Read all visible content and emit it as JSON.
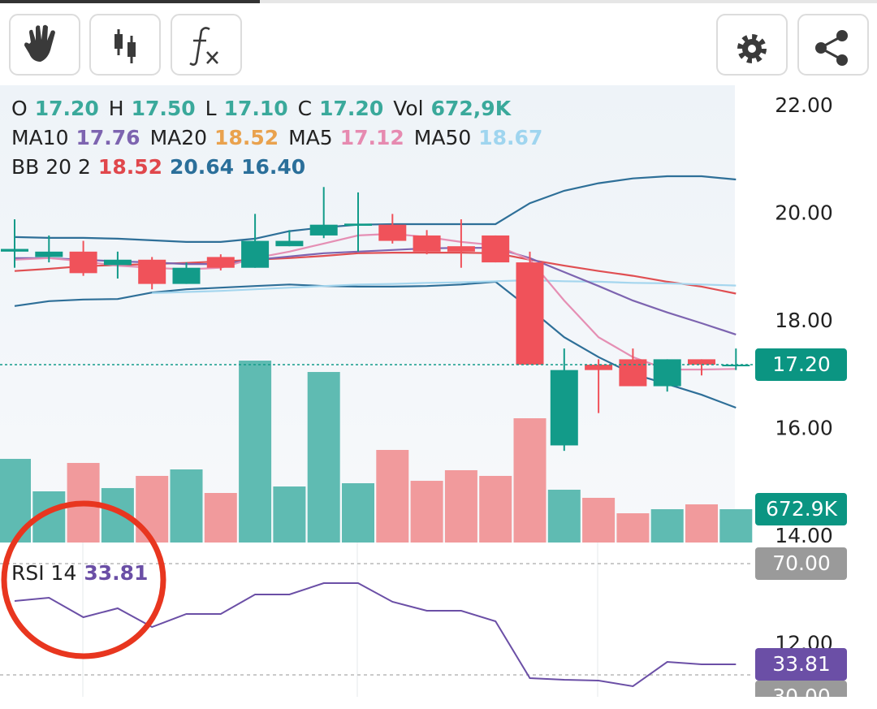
{
  "chart_data": {
    "type": "candlestick",
    "open": [
      19.3,
      19.2,
      19.3,
      19.05,
      19.15,
      18.7,
      19.2,
      19.0,
      19.4,
      19.6,
      19.78,
      19.8,
      19.6,
      19.4,
      19.6,
      19.1,
      15.7,
      17.2,
      17.3,
      16.8,
      17.3,
      17.2
    ],
    "high": [
      19.9,
      19.6,
      19.5,
      19.3,
      19.2,
      19.1,
      19.25,
      20.0,
      19.7,
      20.5,
      20.4,
      20.0,
      19.7,
      19.9,
      19.6,
      19.3,
      17.5,
      17.3,
      17.5,
      17.3,
      17.3,
      17.5
    ],
    "low": [
      19.0,
      19.1,
      18.85,
      18.8,
      18.6,
      18.7,
      18.95,
      19.0,
      19.4,
      19.55,
      19.3,
      19.45,
      19.25,
      19.0,
      19.1,
      17.2,
      15.6,
      16.3,
      16.8,
      16.7,
      17.0,
      17.1
    ],
    "close": [
      19.35,
      19.3,
      18.9,
      19.15,
      18.7,
      19.0,
      19.0,
      19.5,
      19.5,
      19.8,
      19.82,
      19.5,
      19.3,
      19.3,
      19.1,
      17.2,
      17.1,
      17.1,
      16.8,
      17.3,
      17.2,
      17.2
    ],
    "up_color": "#129b89",
    "down_color": "#f0525a",
    "ylim": [
      11.03,
      22.39
    ],
    "yticks": [
      {
        "value": 22,
        "label": "22.00"
      },
      {
        "value": 20,
        "label": "20.00"
      },
      {
        "value": 18,
        "label": "18.00"
      },
      {
        "value": 16,
        "label": "16.00"
      },
      {
        "value": 14,
        "label": "14.00"
      },
      {
        "value": 12,
        "label": "12.00"
      }
    ],
    "last_price": {
      "value": 17.2,
      "label": "17.20"
    },
    "overlays": [
      {
        "color": "#2e6f98",
        "values": [
          19.57,
          19.555,
          19.555,
          19.54,
          19.51,
          19.48,
          19.48,
          19.54,
          19.68,
          19.75,
          19.8,
          19.81,
          19.81,
          19.81,
          19.81,
          20.2,
          20.43,
          20.57,
          20.66,
          20.7,
          20.7,
          20.64
        ]
      },
      {
        "color": "#e04f52",
        "values": [
          18.94,
          18.98,
          19.03,
          19.05,
          19.07,
          19.09,
          19.12,
          19.15,
          19.18,
          19.22,
          19.27,
          19.28,
          19.28,
          19.28,
          19.27,
          19.15,
          19.04,
          18.94,
          18.85,
          18.74,
          18.65,
          18.52
        ]
      },
      {
        "color": "#2e6f98",
        "values": [
          18.29,
          18.38,
          18.41,
          18.42,
          18.54,
          18.6,
          18.63,
          18.66,
          18.69,
          18.66,
          18.65,
          18.65,
          18.66,
          18.69,
          18.74,
          18.24,
          17.71,
          17.34,
          17.03,
          16.84,
          16.64,
          16.4
        ]
      },
      {
        "color": "#a5d6ee",
        "values": [
          null,
          null,
          null,
          null,
          18.53,
          18.55,
          18.57,
          18.6,
          18.63,
          18.66,
          18.69,
          18.7,
          18.72,
          18.73,
          18.75,
          18.77,
          18.75,
          18.74,
          18.72,
          18.71,
          18.69,
          18.67
        ]
      },
      {
        "color": "#7d64b0",
        "values": [
          19.18,
          19.18,
          19.15,
          19.12,
          19.1,
          19.07,
          19.07,
          19.15,
          19.21,
          19.27,
          19.3,
          19.33,
          19.36,
          19.37,
          19.37,
          19.18,
          18.92,
          18.66,
          18.39,
          18.17,
          17.97,
          17.76
        ]
      },
      {
        "color": "#e58fb4",
        "values": [
          19.15,
          19.18,
          19.12,
          19.04,
          19.0,
          18.97,
          19.0,
          19.18,
          19.3,
          19.45,
          19.6,
          19.63,
          19.57,
          19.48,
          19.42,
          19.15,
          18.39,
          17.71,
          17.34,
          17.11,
          17.11,
          17.12
        ]
      }
    ],
    "legend": [
      [
        {
          "label": "O",
          "value": "17.20",
          "color": "#3aa99b"
        },
        {
          "label": "H",
          "value": "17.50",
          "color": "#3aa99b"
        },
        {
          "label": "L",
          "value": "17.10",
          "color": "#3aa99b"
        },
        {
          "label": "C",
          "value": "17.20",
          "color": "#3aa99b"
        },
        {
          "label": "Vol",
          "value": "672,9K",
          "color": "#3aa99b"
        }
      ],
      [
        {
          "label": "MA10",
          "value": "17.76",
          "color": "#7d64b0"
        },
        {
          "label": "MA20",
          "value": "18.52",
          "color": "#e9a24e"
        },
        {
          "label": "MA5",
          "value": "17.12",
          "color": "#e68ab0"
        },
        {
          "label": "MA50",
          "value": "18.67",
          "color": "#9fd5ef"
        }
      ],
      [
        {
          "label": "BB 20 2",
          "values": [
            "18.52",
            "20.64",
            "16.40"
          ],
          "colors": [
            "#e0474c",
            "#2b6f9a",
            "#2b6f9a"
          ]
        }
      ]
    ],
    "volume": {
      "values": [
        1690,
        1034,
        1608,
        1100,
        1346,
        1477,
        1001,
        3676,
        1132,
        3446,
        1198,
        1871,
        1247,
        1461,
        1346,
        2511,
        1067,
        903,
        591,
        673,
        771,
        672.9
      ],
      "ylim": [
        0,
        9240
      ],
      "up_color": "#5fbbb2",
      "down_color": "#f19a9c",
      "last_label": "672.9K"
    },
    "rsi": {
      "name": "RSI 14",
      "value": "33.81",
      "color": "#6b4fa6",
      "values": [
        56.57,
        57.74,
        50.73,
        53.94,
        47.23,
        51.9,
        51.9,
        58.91,
        58.91,
        62.99,
        62.99,
        56.28,
        53.07,
        53.07,
        49.27,
        28.83,
        28.25,
        27.96,
        25.91,
        34.67,
        33.79,
        33.81
      ],
      "ylim": [
        22.12,
        77.59
      ],
      "levels": [
        {
          "value": 70,
          "label": "70.00"
        },
        {
          "value": 30,
          "label": "30.00"
        }
      ],
      "last": {
        "value": 33.81,
        "label": "33.81"
      }
    }
  }
}
